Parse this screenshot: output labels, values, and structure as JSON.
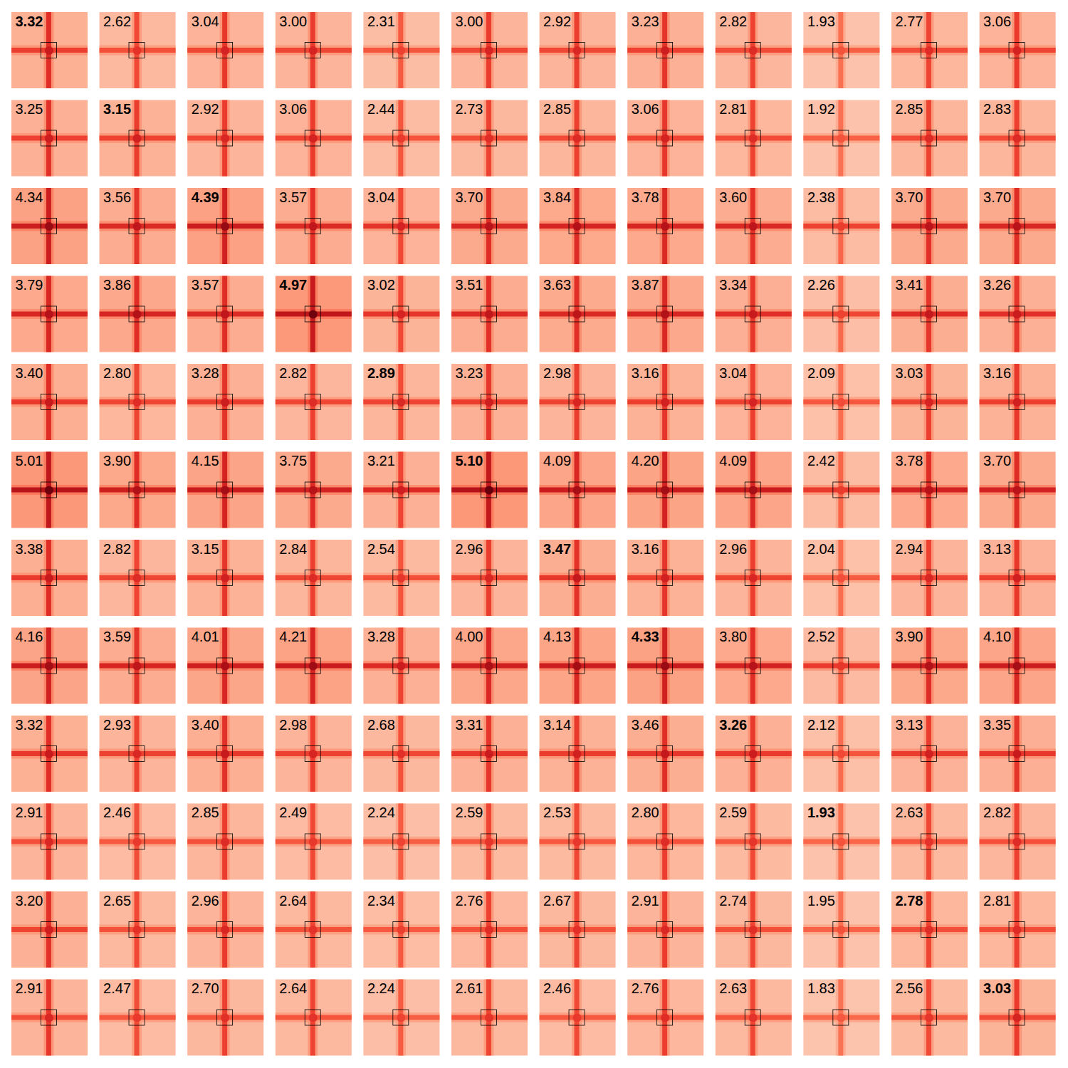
{
  "chart_data": {
    "type": "heatmap_grid",
    "cells": [
      [
        3.32,
        2.62,
        3.04,
        3.0,
        2.31,
        3.0,
        2.92,
        3.23,
        2.82,
        1.93,
        2.77,
        3.06
      ],
      [
        3.25,
        3.15,
        2.92,
        3.06,
        2.44,
        2.73,
        2.85,
        3.06,
        2.81,
        1.92,
        2.85,
        2.83
      ],
      [
        4.34,
        3.56,
        4.39,
        3.57,
        3.04,
        3.7,
        3.84,
        3.78,
        3.6,
        2.38,
        3.7,
        3.7
      ],
      [
        3.79,
        3.86,
        3.57,
        4.97,
        3.02,
        3.51,
        3.63,
        3.87,
        3.34,
        2.26,
        3.41,
        3.26
      ],
      [
        3.4,
        2.8,
        3.28,
        2.82,
        2.89,
        3.23,
        2.98,
        3.16,
        3.04,
        2.09,
        3.03,
        3.16
      ],
      [
        5.01,
        3.9,
        4.15,
        3.75,
        3.21,
        5.1,
        4.09,
        4.2,
        4.09,
        2.42,
        3.78,
        3.7
      ],
      [
        3.38,
        2.82,
        3.15,
        2.84,
        2.54,
        2.96,
        3.47,
        3.16,
        2.96,
        2.04,
        2.94,
        3.13
      ],
      [
        4.16,
        3.59,
        4.01,
        4.21,
        3.28,
        4.0,
        4.13,
        4.33,
        3.8,
        2.52,
        3.9,
        4.1
      ],
      [
        3.32,
        2.93,
        3.4,
        2.98,
        2.68,
        3.31,
        3.14,
        3.46,
        3.26,
        2.12,
        3.13,
        3.35
      ],
      [
        2.91,
        2.46,
        2.85,
        2.49,
        2.24,
        2.59,
        2.53,
        2.8,
        2.59,
        1.93,
        2.63,
        2.82
      ],
      [
        3.2,
        2.65,
        2.96,
        2.64,
        2.34,
        2.76,
        2.67,
        2.91,
        2.74,
        1.95,
        2.78,
        2.81
      ],
      [
        2.91,
        2.47,
        2.7,
        2.64,
        2.24,
        2.61,
        2.46,
        2.76,
        2.63,
        1.83,
        2.56,
        3.03
      ]
    ],
    "highlighted": [
      [
        0,
        0
      ],
      [
        1,
        1
      ],
      [
        2,
        2
      ],
      [
        3,
        3
      ],
      [
        4,
        4
      ],
      [
        5,
        5
      ],
      [
        6,
        6
      ],
      [
        7,
        7
      ],
      [
        8,
        8
      ],
      [
        9,
        9
      ],
      [
        10,
        10
      ],
      [
        11,
        11
      ]
    ]
  }
}
